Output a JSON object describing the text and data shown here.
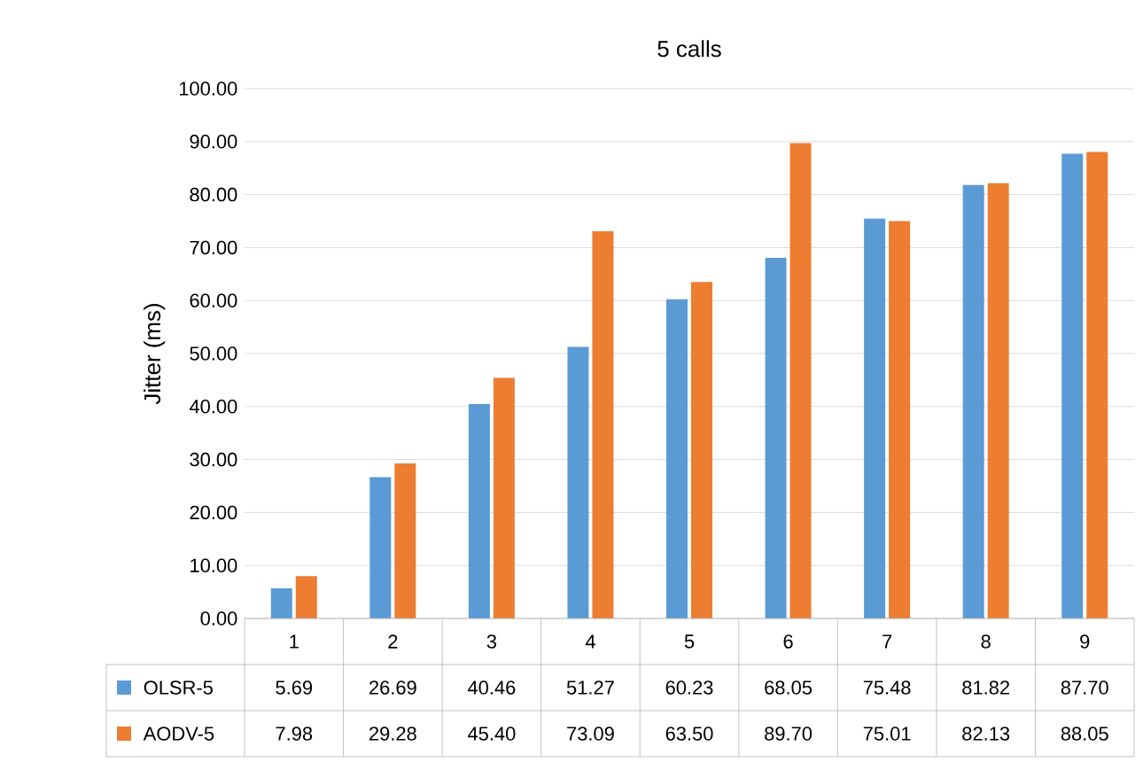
{
  "chart_data": {
    "type": "bar",
    "title": "5 calls",
    "ylabel": "Jitter (ms)",
    "categories": [
      "1",
      "2",
      "3",
      "4",
      "5",
      "6",
      "7",
      "8",
      "9"
    ],
    "series": [
      {
        "name": "OLSR-5",
        "color": "#5b9bd5",
        "values": [
          5.69,
          26.69,
          40.46,
          51.27,
          60.23,
          68.05,
          75.48,
          81.82,
          87.7
        ],
        "value_labels": [
          "5.69",
          "26.69",
          "40.46",
          "51.27",
          "60.23",
          "68.05",
          "75.48",
          "81.82",
          "87.70"
        ]
      },
      {
        "name": "AODV-5",
        "color": "#ed7d31",
        "values": [
          7.98,
          29.28,
          45.4,
          73.09,
          63.5,
          89.7,
          75.01,
          82.13,
          88.05
        ],
        "value_labels": [
          "7.98",
          "29.28",
          "45.40",
          "73.09",
          "63.50",
          "89.70",
          "75.01",
          "82.13",
          "88.05"
        ]
      }
    ],
    "ylim": [
      0,
      100
    ],
    "yticks": [
      {
        "value": 0,
        "label": "0.00"
      },
      {
        "value": 10,
        "label": "10.00"
      },
      {
        "value": 20,
        "label": "20.00"
      },
      {
        "value": 30,
        "label": "30.00"
      },
      {
        "value": 40,
        "label": "40.00"
      },
      {
        "value": 50,
        "label": "50.00"
      },
      {
        "value": 60,
        "label": "60.00"
      },
      {
        "value": 70,
        "label": "70.00"
      },
      {
        "value": 80,
        "label": "80.00"
      },
      {
        "value": 90,
        "label": "90.00"
      },
      {
        "value": 100,
        "label": "100.00"
      }
    ],
    "grid": "y",
    "legend": "bottom"
  }
}
